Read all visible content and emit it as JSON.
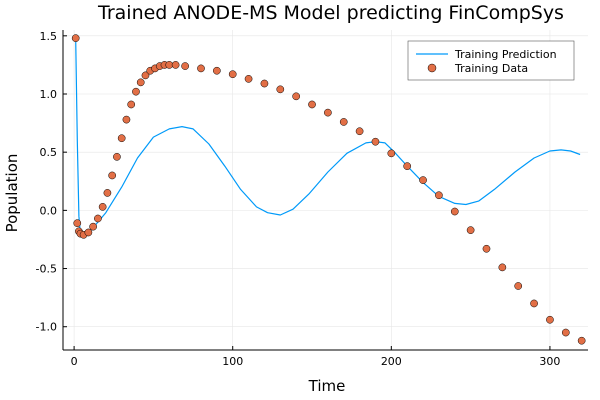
{
  "chart_data": {
    "type": "line",
    "title": "Trained ANODE-MS Model predicting FinCompSys",
    "xlabel": "Time",
    "ylabel": "Population",
    "xlim": [
      -7,
      324
    ],
    "ylim": [
      -1.2,
      1.55
    ],
    "x_ticks": [
      0,
      100,
      200,
      300
    ],
    "x_tick_labels": [
      "0",
      "100",
      "200",
      "300"
    ],
    "y_ticks": [
      -1.0,
      -0.5,
      0.0,
      0.5,
      1.0,
      1.5
    ],
    "y_tick_labels": [
      "-1.0",
      "-0.5",
      "0.0",
      "0.5",
      "1.0",
      "1.5"
    ],
    "grid": true,
    "legend_position": "top-right",
    "colors": {
      "prediction": "#009af9",
      "data_fill": "#e26f46",
      "data_edge": "#000000",
      "axis": "#000000",
      "grid": "#e6e6e6"
    },
    "series": [
      {
        "name": "Training Prediction",
        "kind": "line",
        "x": [
          1,
          2,
          3,
          4,
          5,
          8,
          12,
          20,
          30,
          40,
          50,
          60,
          68,
          75,
          85,
          95,
          105,
          115,
          122,
          130,
          138,
          148,
          160,
          172,
          184,
          190,
          196,
          202,
          210,
          220,
          230,
          240,
          247,
          255,
          265,
          278,
          290,
          300,
          307,
          313,
          319
        ],
        "y": [
          1.47,
          0.6,
          -0.05,
          -0.2,
          -0.22,
          -0.2,
          -0.15,
          -0.02,
          0.2,
          0.45,
          0.63,
          0.7,
          0.72,
          0.7,
          0.57,
          0.38,
          0.18,
          0.03,
          -0.02,
          -0.04,
          0.01,
          0.14,
          0.33,
          0.49,
          0.58,
          0.59,
          0.58,
          0.5,
          0.38,
          0.24,
          0.12,
          0.06,
          0.05,
          0.08,
          0.18,
          0.33,
          0.45,
          0.51,
          0.52,
          0.51,
          0.48
        ]
      },
      {
        "name": "Training Data",
        "kind": "scatter",
        "x": [
          1,
          2,
          3,
          4,
          6,
          9,
          12,
          15,
          18,
          21,
          24,
          27,
          30,
          33,
          36,
          39,
          42,
          45,
          48,
          51,
          54,
          57,
          60,
          64,
          70,
          80,
          90,
          100,
          110,
          120,
          130,
          140,
          150,
          160,
          170,
          180,
          190,
          200,
          210,
          220,
          230,
          240,
          250,
          260,
          270,
          280,
          290,
          300,
          310,
          320
        ],
        "y": [
          1.48,
          -0.11,
          -0.18,
          -0.2,
          -0.21,
          -0.19,
          -0.14,
          -0.07,
          0.03,
          0.15,
          0.3,
          0.46,
          0.62,
          0.78,
          0.91,
          1.02,
          1.1,
          1.16,
          1.2,
          1.22,
          1.24,
          1.25,
          1.25,
          1.25,
          1.24,
          1.22,
          1.2,
          1.17,
          1.13,
          1.09,
          1.04,
          0.98,
          0.91,
          0.84,
          0.76,
          0.68,
          0.59,
          0.49,
          0.38,
          0.26,
          0.13,
          -0.01,
          -0.17,
          -0.33,
          -0.49,
          -0.65,
          -0.8,
          -0.94,
          -1.05,
          -1.12
        ]
      }
    ]
  }
}
